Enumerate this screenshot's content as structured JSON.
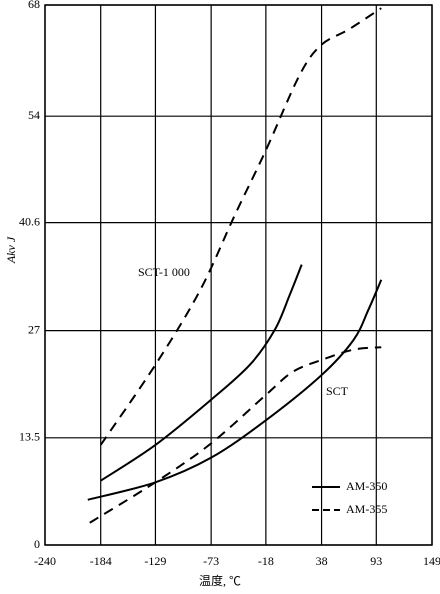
{
  "chart_data": {
    "type": "line",
    "xlabel": "温度, ℃",
    "ylabel": "Akv J",
    "xlim": [
      -240,
      149
    ],
    "xticks": [
      -240,
      -184,
      -129,
      -73,
      -18,
      38,
      93,
      149
    ],
    "ylim": [
      0,
      68
    ],
    "yticks": [
      0,
      13.5,
      27,
      40.6,
      54,
      68
    ],
    "grid": true,
    "legend": "lower right",
    "annotations": [
      "SCT-1 000",
      "SCT"
    ],
    "series": [
      {
        "name": "AM-350",
        "color": "#000000",
        "dashed": false,
        "lines": [
          {
            "x": [
              -184,
              -129,
              -73,
              -34,
              -9,
              6,
              18
            ],
            "values": [
              8.1,
              12.6,
              18.3,
              22.7,
              27.1,
              31.5,
              35.3
            ]
          },
          {
            "x": [
              -197,
              -129,
              -73,
              -18,
              38,
              70,
              85,
              98
            ],
            "values": [
              5.7,
              7.9,
              11,
              15.7,
              21.4,
              25.8,
              29.6,
              33.4
            ]
          }
        ]
      },
      {
        "name": "AM-355",
        "color": "#000000",
        "dashed": true,
        "lines": [
          {
            "x": [
              -184,
              -129,
              -84,
              -49,
              -18,
              16,
              38,
              65,
              98
            ],
            "values": [
              12.6,
              22.7,
              32.1,
              41.6,
              49.7,
              59.2,
              63,
              64.9,
              67.6
            ]
          },
          {
            "x": [
              -195,
              -129,
              -73,
              -18,
              9,
              38,
              70,
              98
            ],
            "values": [
              2.8,
              7.9,
              12.8,
              18.9,
              21.8,
              23.3,
              24.6,
              24.9
            ]
          }
        ]
      }
    ]
  }
}
